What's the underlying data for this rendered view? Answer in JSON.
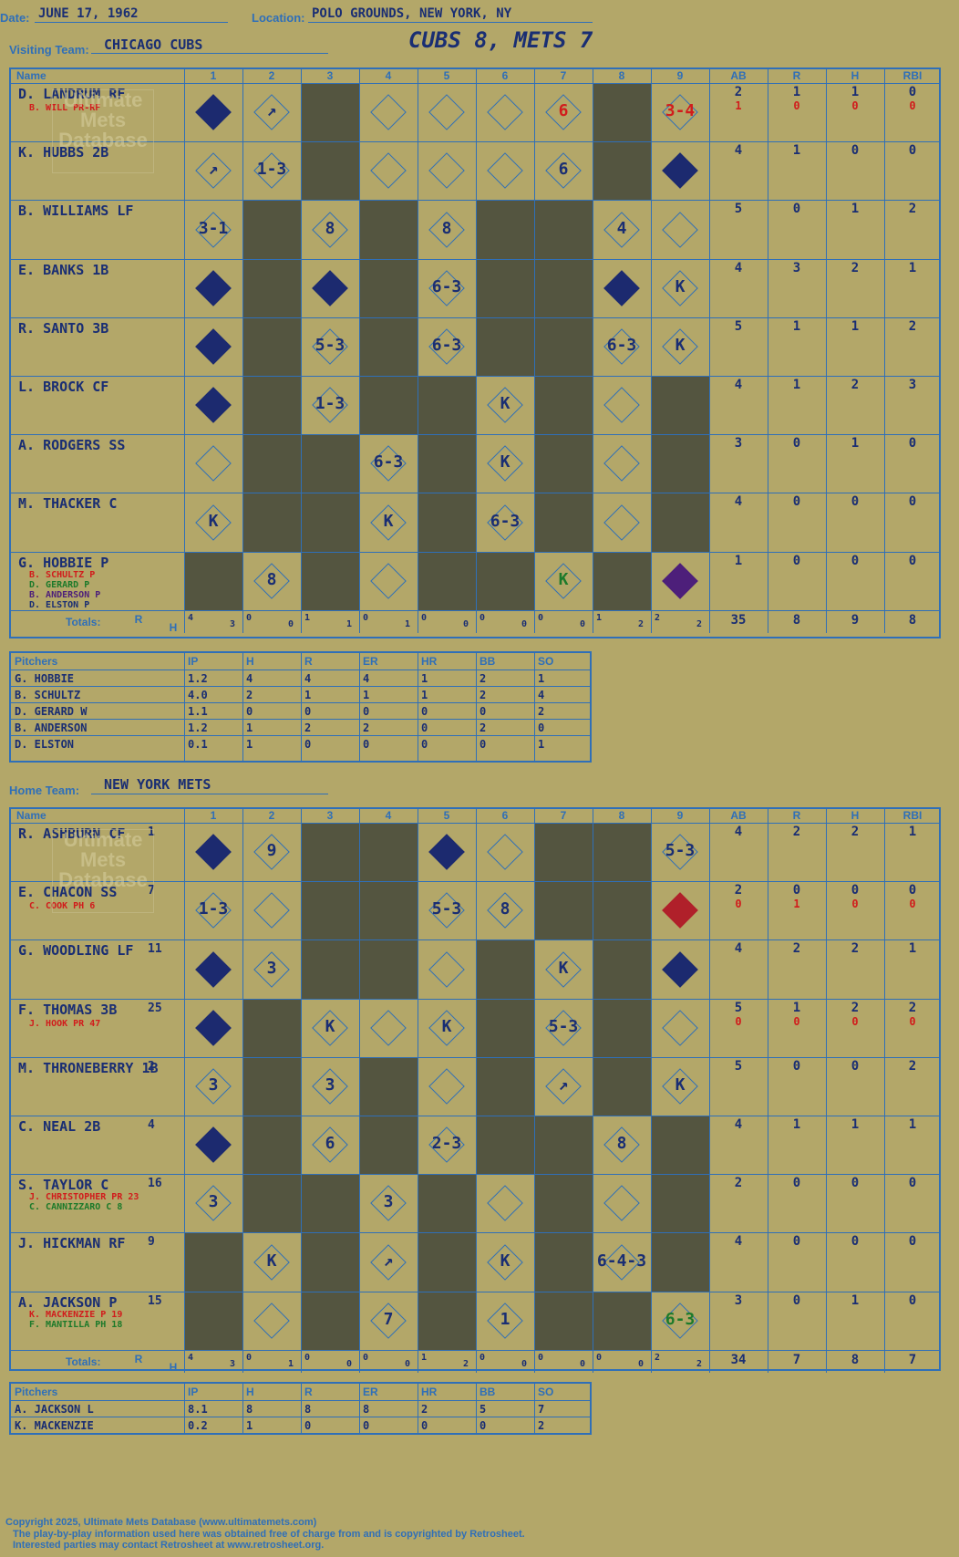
{
  "header": {
    "date_label": "Date:",
    "date_value": "JUNE 17, 1962",
    "location_label": "Location:",
    "location_value": "POLO GROUNDS, NEW YORK, NY",
    "visiting_label": "Visiting Team:",
    "visiting_value": "CHICAGO CUBS",
    "score_title": "CUBS 8, METS 7"
  },
  "col_headers": [
    "Name",
    "1",
    "2",
    "3",
    "4",
    "5",
    "6",
    "7",
    "8",
    "9",
    "AB",
    "R",
    "H",
    "RBI"
  ],
  "visitors": {
    "players": [
      {
        "name": "D. LANDRUM RF",
        "sub": "B. WILL PR-RF",
        "ab": "2",
        "r": "1",
        "h": "1",
        "rbi": "0",
        "ab2": "1",
        "r2": "0",
        "h2": "0",
        "rbi2": "0"
      },
      {
        "name": "K. HUBBS 2B",
        "ab": "4",
        "r": "1",
        "h": "0",
        "rbi": "0"
      },
      {
        "name": "B. WILLIAMS LF",
        "ab": "5",
        "r": "0",
        "h": "1",
        "rbi": "2"
      },
      {
        "name": "E. BANKS 1B",
        "ab": "4",
        "r": "3",
        "h": "2",
        "rbi": "1"
      },
      {
        "name": "R. SANTO 3B",
        "ab": "5",
        "r": "1",
        "h": "1",
        "rbi": "2"
      },
      {
        "name": "L. BROCK CF",
        "ab": "4",
        "r": "1",
        "h": "2",
        "rbi": "3"
      },
      {
        "name": "A. RODGERS SS",
        "ab": "3",
        "r": "0",
        "h": "1",
        "rbi": "0"
      },
      {
        "name": "M. THACKER C",
        "ab": "4",
        "r": "0",
        "h": "0",
        "rbi": "0"
      },
      {
        "name": "G. HOBBIE P",
        "subs": [
          "B. SCHULTZ P",
          "D. GERARD P",
          "B. ANDERSON P",
          "D. ELSTON P"
        ],
        "ab": "1",
        "r": "0",
        "h": "0",
        "rbi": "0"
      }
    ],
    "totals_label": "Totals:",
    "rh_label_r": "R",
    "rh_label_h": "H",
    "inning_totals": [
      [
        "4",
        "3"
      ],
      [
        "0",
        "0"
      ],
      [
        "1",
        "1"
      ],
      [
        "0",
        "1"
      ],
      [
        "0",
        "0"
      ],
      [
        "0",
        "0"
      ],
      [
        "0",
        "0"
      ],
      [
        "1",
        "2"
      ],
      [
        "2",
        "2"
      ]
    ],
    "totals": {
      "ab": "35",
      "r": "8",
      "h": "9",
      "rbi": "8"
    }
  },
  "visitor_pitchers": {
    "headers": [
      "Pitchers",
      "IP",
      "H",
      "R",
      "ER",
      "HR",
      "BB",
      "SO"
    ],
    "rows": [
      [
        "G. HOBBIE",
        "1.2",
        "4",
        "4",
        "4",
        "1",
        "2",
        "1"
      ],
      [
        "B. SCHULTZ",
        "4.0",
        "2",
        "1",
        "1",
        "1",
        "2",
        "4"
      ],
      [
        "D. GERARD W",
        "1.1",
        "0",
        "0",
        "0",
        "0",
        "0",
        "2"
      ],
      [
        "B. ANDERSON",
        "1.2",
        "1",
        "2",
        "2",
        "0",
        "2",
        "0"
      ],
      [
        "D. ELSTON",
        "0.1",
        "1",
        "0",
        "0",
        "0",
        "0",
        "1"
      ]
    ]
  },
  "home": {
    "label": "Home Team:",
    "value": "NEW YORK METS",
    "players": [
      {
        "name": "R. ASHBURN CF",
        "num": "1",
        "ab": "4",
        "r": "2",
        "h": "2",
        "rbi": "1"
      },
      {
        "name": "E. CHACON SS",
        "num": "7",
        "sub": "C. COOK PH 6",
        "ab": "2",
        "r": "0",
        "h": "0",
        "rbi": "0",
        "ab2": "0",
        "r2": "1",
        "h2": "0",
        "rbi2": "0"
      },
      {
        "name": "G. WOODLING LF",
        "num": "11",
        "ab": "4",
        "r": "2",
        "h": "2",
        "rbi": "1"
      },
      {
        "name": "F. THOMAS 3B",
        "num": "25",
        "sub": "J. HOOK PR 47",
        "ab": "5",
        "r": "1",
        "h": "2",
        "rbi": "2",
        "ab2": "0",
        "r2": "0",
        "h2": "0",
        "rbi2": "0"
      },
      {
        "name": "M. THRONEBERRY 1B",
        "num": "2",
        "ab": "5",
        "r": "0",
        "h": "0",
        "rbi": "2"
      },
      {
        "name": "C. NEAL 2B",
        "num": "4",
        "ab": "4",
        "r": "1",
        "h": "1",
        "rbi": "1"
      },
      {
        "name": "S. TAYLOR C",
        "num": "16",
        "subs": [
          "J. CHRISTOPHER PR 23",
          "C. CANNIZZARO C 8"
        ],
        "ab": "2",
        "r": "0",
        "h": "0",
        "rbi": "0"
      },
      {
        "name": "J. HICKMAN RF",
        "num": "9",
        "ab": "4",
        "r": "0",
        "h": "0",
        "rbi": "0"
      },
      {
        "name": "A. JACKSON P",
        "num": "15",
        "subs": [
          "K. MACKENZIE P 19",
          "F. MANTILLA PH 18"
        ],
        "ab": "3",
        "r": "0",
        "h": "1",
        "rbi": "0"
      }
    ],
    "inning_totals": [
      [
        "4",
        "3"
      ],
      [
        "0",
        "1"
      ],
      [
        "0",
        "0"
      ],
      [
        "0",
        "0"
      ],
      [
        "1",
        "2"
      ],
      [
        "0",
        "0"
      ],
      [
        "0",
        "0"
      ],
      [
        "0",
        "0"
      ],
      [
        "2",
        "2"
      ]
    ],
    "totals": {
      "ab": "34",
      "r": "7",
      "h": "8",
      "rbi": "7"
    }
  },
  "home_pitchers": {
    "rows": [
      [
        "A. JACKSON L",
        "8.1",
        "8",
        "8",
        "8",
        "2",
        "5",
        "7"
      ],
      [
        "K. MACKENZIE",
        "0.2",
        "1",
        "0",
        "0",
        "0",
        "0",
        "2"
      ]
    ]
  },
  "watermark": "Ultimate Mets Database",
  "watermark_url": "ultimatemets.com",
  "footer": {
    "line1": "Copyright 2025, Ultimate Mets Database (www.ultimatemets.com)",
    "line2": "The play-by-play information used here was obtained free of charge from and is copyrighted by Retrosheet.",
    "line3": "Interested parties may contact Retrosheet at www.retrosheet.org."
  }
}
